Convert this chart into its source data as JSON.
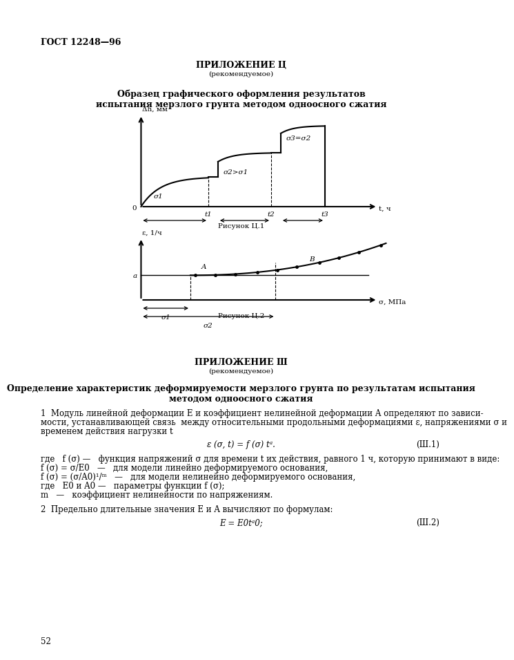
{
  "page_title_left": "ГОСТ 12248—96",
  "page_number": "52",
  "appendix_ts_title": "ПРИЛОЖЕНИЕ Ц",
  "appendix_ts_subtitle": "(рекомендуемое)",
  "fig1_title_line1": "Образец графического оформления результатов",
  "fig1_title_line2": "испытания мерзлого грунта методом одноосного сжатия",
  "fig1_ylabel": "Δh, мм",
  "fig1_xlabel": "t, ч",
  "fig1_caption": "Рисунок Ц.1",
  "fig1_sigma_labels": [
    "σ1",
    "σ2>σ1",
    "σ3=σ2"
  ],
  "fig1_t_labels": [
    "t1",
    "t2",
    "t3"
  ],
  "fig2_ylabel": "ε, 1/ч",
  "fig2_xlabel": "σ, МПа",
  "fig2_caption": "Рисунок Ц.2",
  "fig2_a_label": "a",
  "fig2_sigma_labels": [
    "σ1",
    "σ2"
  ],
  "appendix_sh_title": "ПРИЛОЖЕНИЕ Ш",
  "appendix_sh_subtitle": "(рекомендуемое)",
  "appendix_sh_bold_title_line1": "Определение характеристик деформируемости мерзлого грунта по результатам испытания",
  "appendix_sh_bold_title_line2": "методом одноосного сжатия",
  "para1_line1": "1  Модуль линейной деформации E и коэффициент нелинейной деформации A определяют по зависи-",
  "para1_line2": "мости, устанавливающей связь  между относительными продольными деформациями ε, напряжениями σ и",
  "para1_line3": "временем действия нагрузки t",
  "formula1": "ε (σ, t) = f (σ) tᵃ.",
  "formula1_label": "(Ш.1)",
  "where_line1": "где   f (σ) —   функция напряжений σ для времени t их действия, равного 1 ч, которую принимают в виде:",
  "where_line2": "f (σ) = σ/E0   —   для модели линейно деформируемого основания,",
  "where_line3": "f (σ) = (σ/A0)¹/ᵐ   —   для модели нелинейно деформируемого основания,",
  "where_line4": "где   E0 и A0 —   параметры функции f (σ);",
  "where_line5": "m   —   коэффициент нелинейности по напряжениям.",
  "para2_line1": "2  Предельно длительные значения E и A вычисляют по формулам:",
  "formula2": "E = E0tᵃ0;",
  "formula2_label": "(Ш.2)"
}
